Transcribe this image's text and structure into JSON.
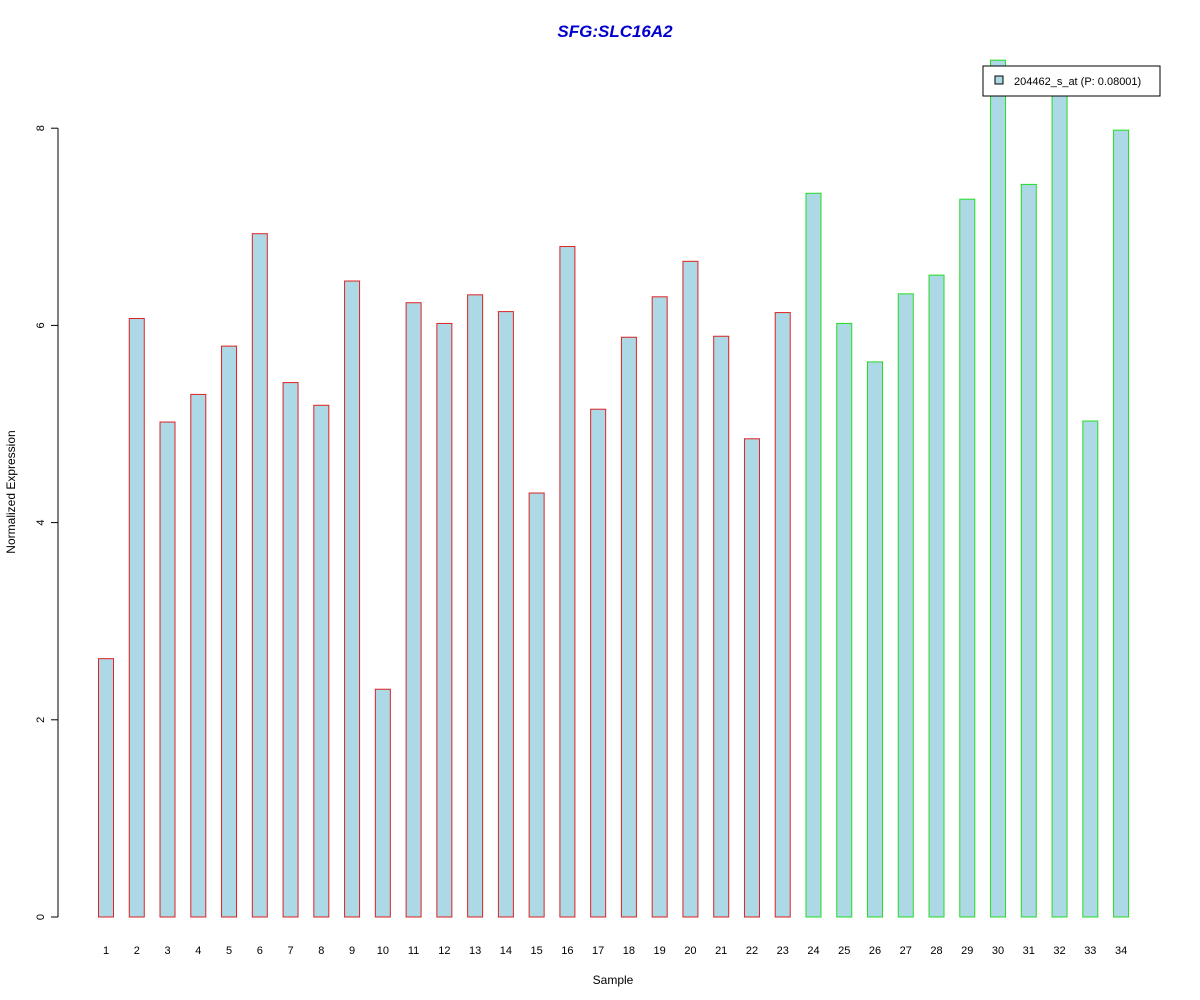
{
  "chart_data": {
    "type": "bar",
    "title": "SFG:SLC16A2",
    "xlabel": "Sample",
    "ylabel": "Normalized Expression",
    "ylim": [
      0,
      8.7
    ],
    "yticks": [
      0,
      2,
      4,
      6,
      8
    ],
    "grid": false,
    "legend_position": "top-right",
    "categories": [
      "1",
      "2",
      "3",
      "4",
      "5",
      "6",
      "7",
      "8",
      "9",
      "10",
      "11",
      "12",
      "13",
      "14",
      "15",
      "16",
      "17",
      "18",
      "19",
      "20",
      "21",
      "22",
      "23",
      "24",
      "25",
      "26",
      "27",
      "28",
      "29",
      "30",
      "31",
      "32",
      "33",
      "34"
    ],
    "series": [
      {
        "name": "204462_s_at (P: 0.08001)",
        "values": [
          2.62,
          6.07,
          5.02,
          5.3,
          5.79,
          6.93,
          5.42,
          5.19,
          6.45,
          2.31,
          6.23,
          6.02,
          6.31,
          6.14,
          4.3,
          6.8,
          5.15,
          5.88,
          6.29,
          6.65,
          5.89,
          4.85,
          6.13,
          7.34,
          6.02,
          5.63,
          6.32,
          6.51,
          7.28,
          8.69,
          7.43,
          8.33,
          5.03,
          7.98
        ]
      }
    ],
    "groups": [
      {
        "from": 1,
        "to": 23,
        "border_color": "#dd2222"
      },
      {
        "from": 24,
        "to": 34,
        "border_color": "#22dd22"
      }
    ],
    "colors": {
      "bar_fill": "#add8e6",
      "title": "#0000cc",
      "axis": "#000000"
    }
  }
}
